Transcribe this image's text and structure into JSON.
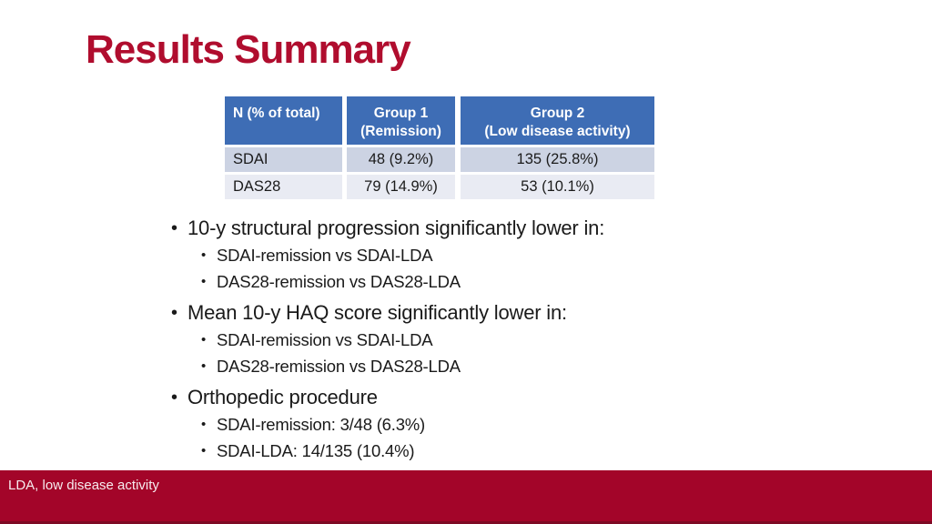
{
  "slide": {
    "title": "Results Summary",
    "footer_note": "LDA, low disease activity"
  },
  "table": {
    "headers": [
      {
        "line1": "N (% of total)",
        "line2": ""
      },
      {
        "line1": "Group 1",
        "line2": "(Remission)"
      },
      {
        "line1": "Group 2",
        "line2": "(Low disease activity)"
      }
    ],
    "rows": [
      [
        "SDAI",
        "48 (9.2%)",
        "135 (25.8%)"
      ],
      [
        "DAS28",
        "79 (14.9%)",
        "53 (10.1%)"
      ]
    ]
  },
  "bullets": [
    {
      "text": "10-y structural progression significantly lower in:",
      "sub": [
        "SDAI-remission vs SDAI-LDA",
        "DAS28-remission vs DAS28-LDA"
      ]
    },
    {
      "text": "Mean 10-y HAQ score significantly lower in:",
      "sub": [
        "SDAI-remission vs SDAI-LDA",
        "DAS28-remission vs DAS28-LDA"
      ]
    },
    {
      "text": "Orthopedic procedure",
      "sub": [
        "SDAI-remission: 3/48 (6.3%)",
        "SDAI-LDA: 14/135 (10.4%)"
      ]
    }
  ],
  "colors": {
    "title": "#B00D2E",
    "footer_bg": "#A30529",
    "footer_bottom_strip": "#7D0A24",
    "table_header_bg": "#3E6DB5",
    "table_band1_bg": "#CCD3E3",
    "table_band2_bg": "#E9EBF3",
    "bullet_marker": "•"
  }
}
